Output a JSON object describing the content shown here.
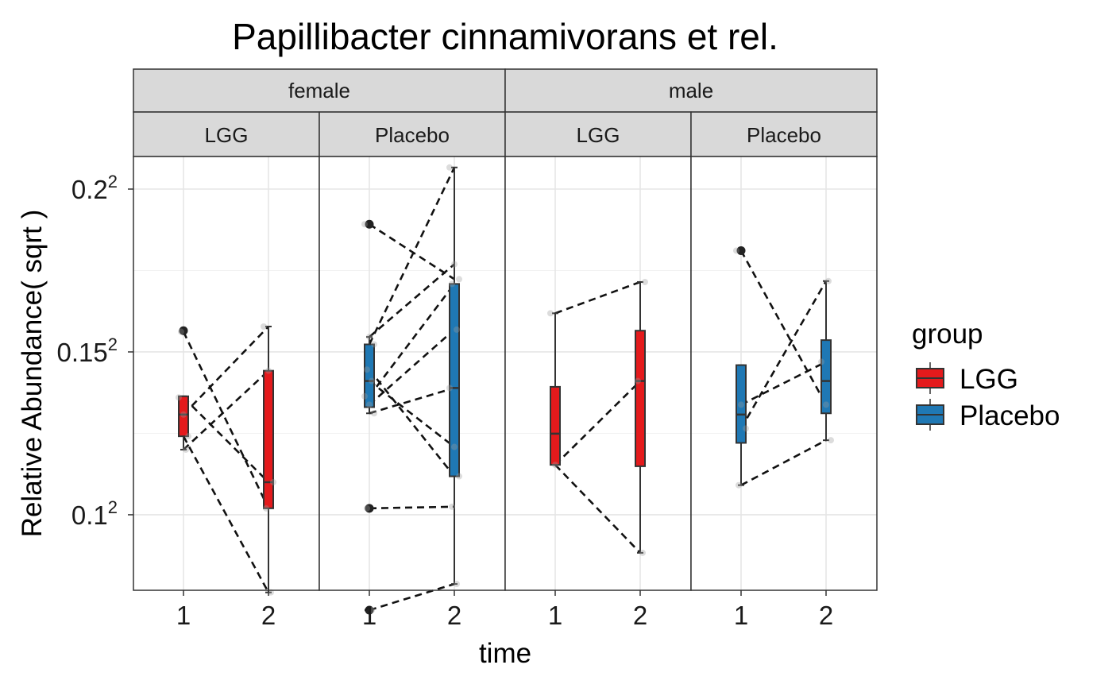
{
  "chart_data": {
    "type": "box",
    "title": "Papillibacter cinnamivorans et rel.",
    "xlabel": "time",
    "ylabel": "Relative Abundance( sqrt )",
    "y_scale": "sqrt",
    "ylim": [
      0.0059,
      0.0441
    ],
    "y_ticks": [
      {
        "value": 0.01,
        "base": "0.1",
        "exp": "2"
      },
      {
        "value": 0.0225,
        "base": "0.15",
        "exp": "2"
      },
      {
        "value": 0.04,
        "base": "0.2",
        "exp": "2"
      }
    ],
    "x_categories": [
      "1",
      "2"
    ],
    "grid": true,
    "legend": {
      "title": "group",
      "placement": "right",
      "entries": [
        {
          "name": "LGG",
          "color": "#e41a1c"
        },
        {
          "name": "Placebo",
          "color": "#1f78b4"
        }
      ]
    },
    "sex_strips": [
      "female",
      "male"
    ],
    "panels": [
      {
        "sex": "female",
        "group": "LGG",
        "color": "#e41a1c",
        "boxes": [
          {
            "time": "1",
            "min": 0.0144,
            "q1": 0.0154,
            "median": 0.0171,
            "q3": 0.0186,
            "max": 0.0186
          },
          {
            "time": "2",
            "min": 0.0058,
            "q1": 0.0104,
            "median": 0.0121,
            "q3": 0.0208,
            "max": 0.0249
          }
        ],
        "outliers": [
          {
            "time": "1",
            "y": 0.0245
          }
        ],
        "points": [
          {
            "time": "1",
            "y": 0.0185
          },
          {
            "time": "1",
            "y": 0.0171
          },
          {
            "time": "1",
            "y": 0.0154
          },
          {
            "time": "1",
            "y": 0.0244
          },
          {
            "time": "1",
            "y": 0.0144
          },
          {
            "time": "2",
            "y": 0.0249
          },
          {
            "time": "2",
            "y": 0.0208
          },
          {
            "time": "2",
            "y": 0.0121
          },
          {
            "time": "2",
            "y": 0.0104
          },
          {
            "time": "2",
            "y": 0.0058
          }
        ],
        "pairs": [
          [
            0.0185,
            0.0121
          ],
          [
            0.0171,
            0.0249
          ],
          [
            0.0244,
            0.0104
          ],
          [
            0.0144,
            0.0208
          ],
          [
            0.0154,
            0.0058
          ]
        ]
      },
      {
        "sex": "female",
        "group": "Placebo",
        "color": "#1f78b4",
        "boxes": [
          {
            "time": "1",
            "min": 0.0172,
            "q1": 0.0177,
            "median": 0.0199,
            "q3": 0.0232,
            "max": 0.0239
          },
          {
            "time": "2",
            "min": 0.0062,
            "q1": 0.0125,
            "median": 0.0193,
            "q3": 0.0292,
            "max": 0.0427
          }
        ],
        "outliers": [
          {
            "time": "1",
            "y": 0.0358
          },
          {
            "time": "1",
            "y": 0.0104
          },
          {
            "time": "1",
            "y": 0.005
          }
        ],
        "points": [
          {
            "time": "1",
            "y": 0.0358
          },
          {
            "time": "1",
            "y": 0.0239
          },
          {
            "time": "1",
            "y": 0.0232
          },
          {
            "time": "1",
            "y": 0.0209
          },
          {
            "time": "1",
            "y": 0.0199
          },
          {
            "time": "1",
            "y": 0.0186
          },
          {
            "time": "1",
            "y": 0.0179
          },
          {
            "time": "1",
            "y": 0.0172
          },
          {
            "time": "1",
            "y": 0.0104
          },
          {
            "time": "1",
            "y": 0.005
          },
          {
            "time": "2",
            "y": 0.0427
          },
          {
            "time": "2",
            "y": 0.0313
          },
          {
            "time": "2",
            "y": 0.0297
          },
          {
            "time": "2",
            "y": 0.0292
          },
          {
            "time": "2",
            "y": 0.0246
          },
          {
            "time": "2",
            "y": 0.0193
          },
          {
            "time": "2",
            "y": 0.0146
          },
          {
            "time": "2",
            "y": 0.0125
          },
          {
            "time": "2",
            "y": 0.0105
          },
          {
            "time": "2",
            "y": 0.0062
          }
        ],
        "pairs": [
          [
            0.0358,
            0.0297
          ],
          [
            0.0239,
            0.0313
          ],
          [
            0.0232,
            0.0427
          ],
          [
            0.0209,
            0.0125
          ],
          [
            0.0199,
            0.0146
          ],
          [
            0.0186,
            0.0292
          ],
          [
            0.0179,
            0.0246
          ],
          [
            0.0172,
            0.0193
          ],
          [
            0.0104,
            0.0105
          ],
          [
            0.005,
            0.0062
          ]
        ]
      },
      {
        "sex": "male",
        "group": "LGG",
        "color": "#e41a1c",
        "boxes": [
          {
            "time": "1",
            "min": 0.0133,
            "q1": 0.0133,
            "median": 0.0156,
            "q3": 0.0194,
            "max": 0.0262
          },
          {
            "time": "2",
            "min": 0.0078,
            "q1": 0.0132,
            "median": 0.0199,
            "q3": 0.0245,
            "max": 0.0294
          }
        ],
        "outliers": [],
        "points": [
          {
            "time": "1",
            "y": 0.0262
          },
          {
            "time": "1",
            "y": 0.0133
          },
          {
            "time": "2",
            "y": 0.0294
          },
          {
            "time": "2",
            "y": 0.0199
          },
          {
            "time": "2",
            "y": 0.0078
          }
        ],
        "pairs": [
          [
            0.0262,
            0.0294
          ],
          [
            0.0133,
            0.0199
          ],
          [
            0.0133,
            0.0078
          ]
        ]
      },
      {
        "sex": "male",
        "group": "Placebo",
        "color": "#1f78b4",
        "boxes": [
          {
            "time": "1",
            "min": 0.0119,
            "q1": 0.0149,
            "median": 0.0171,
            "q3": 0.0213,
            "max": 0.0213
          },
          {
            "time": "2",
            "min": 0.0151,
            "q1": 0.0172,
            "median": 0.0199,
            "q3": 0.0236,
            "max": 0.0295
          }
        ],
        "outliers": [
          {
            "time": "1",
            "y": 0.0328
          }
        ],
        "points": [
          {
            "time": "1",
            "y": 0.0328
          },
          {
            "time": "1",
            "y": 0.0179
          },
          {
            "time": "1",
            "y": 0.016
          },
          {
            "time": "1",
            "y": 0.0119
          },
          {
            "time": "2",
            "y": 0.0295
          },
          {
            "time": "2",
            "y": 0.0216
          },
          {
            "time": "2",
            "y": 0.0179
          },
          {
            "time": "2",
            "y": 0.0151
          }
        ],
        "pairs": [
          [
            0.0328,
            0.0179
          ],
          [
            0.0179,
            0.0216
          ],
          [
            0.016,
            0.0295
          ],
          [
            0.0119,
            0.0151
          ]
        ]
      }
    ]
  }
}
